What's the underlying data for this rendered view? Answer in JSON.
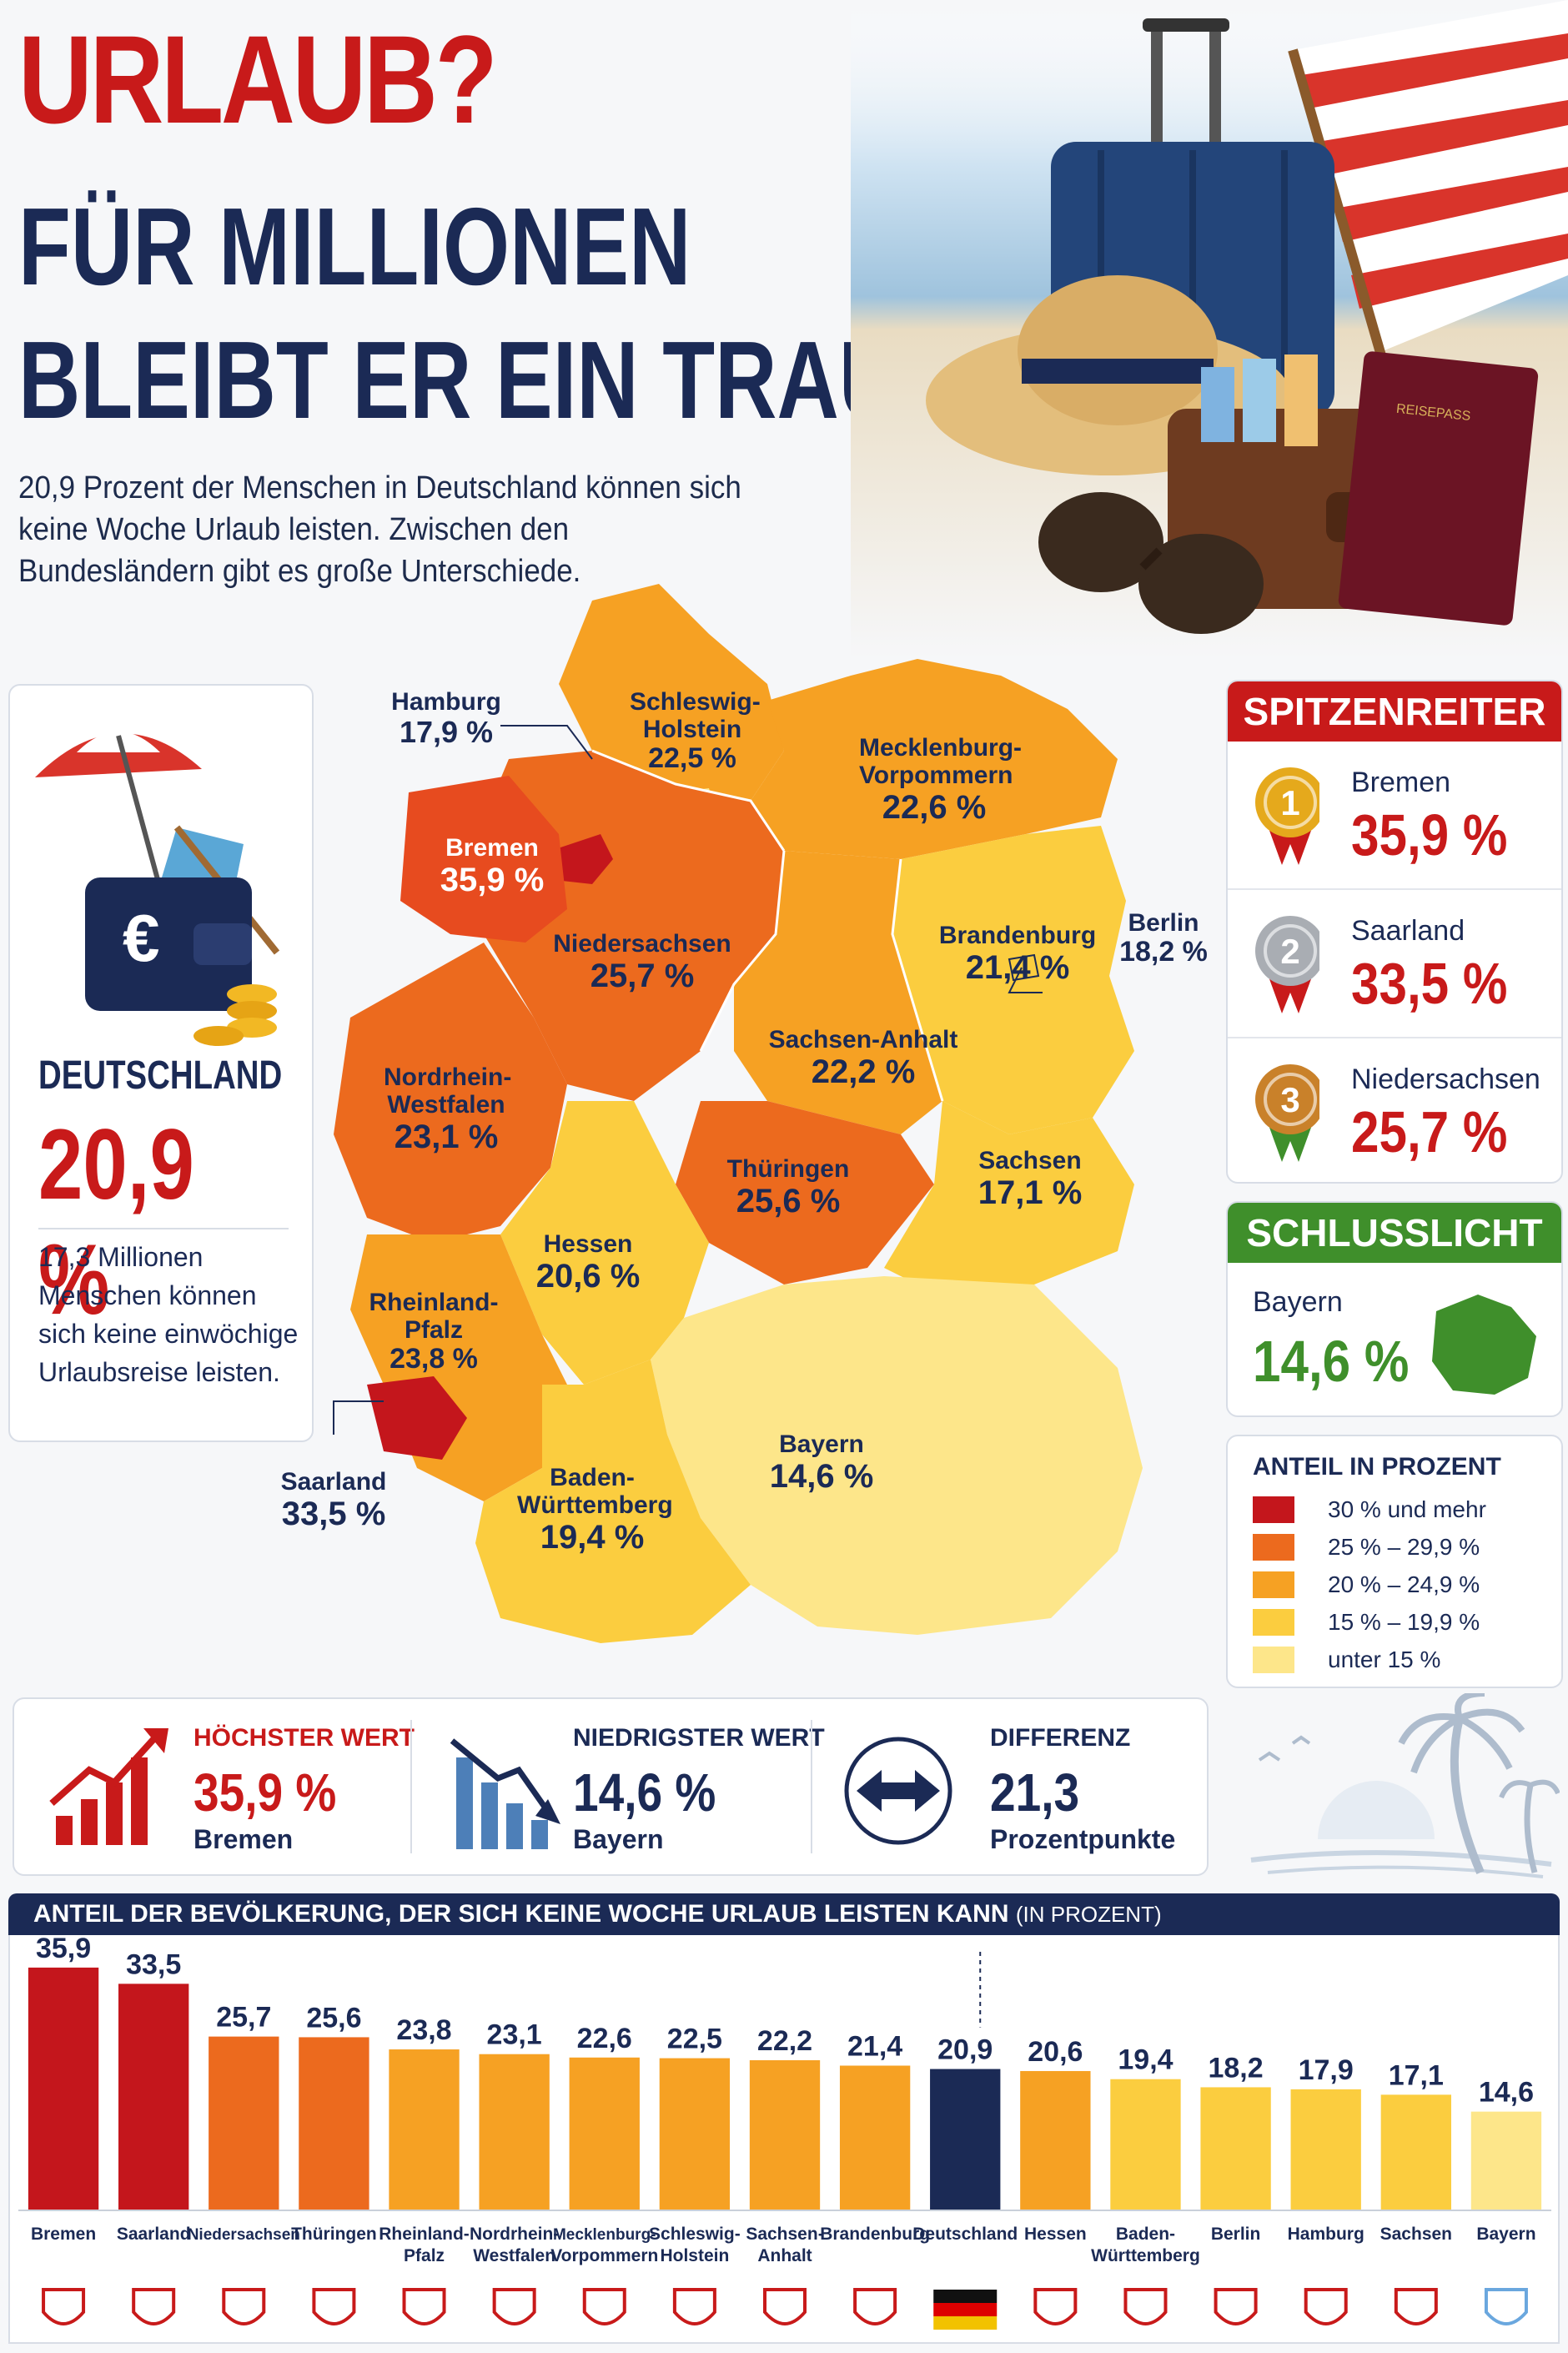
{
  "header": {
    "title_line1": "URLAUB?",
    "title_line2": "FÜR MILLIONEN",
    "title_line3": "BLEIBT ER EIN TRAUM",
    "intro": "20,9 Prozent der Menschen in Deutschland können sich keine Woche Urlaub leisten. Zwischen den Bundesländern gibt es große Unterschiede."
  },
  "deutschland_card": {
    "label": "DEUTSCHLAND",
    "value": "20,9 %",
    "text": "17,3 Millionen Menschen können sich keine einwöchige Urlaubsreise leisten."
  },
  "map_labels": {
    "hamburg": {
      "name": "Hamburg",
      "value": "17,9 %"
    },
    "schleswig": {
      "name": "Schleswig-Holstein",
      "value": "22,5 %"
    },
    "mv": {
      "name": "Mecklenburg-Vorpommern",
      "value": "22,6 %"
    },
    "bremen": {
      "name": "Bremen",
      "value": "35,9 %"
    },
    "niedersachsen": {
      "name": "Niedersachsen",
      "value": "25,7 %"
    },
    "brandenburg": {
      "name": "Brandenburg",
      "value": "21,4 %"
    },
    "berlin": {
      "name": "Berlin",
      "value": "18,2 %"
    },
    "sachsen_anhalt": {
      "name": "Sachsen-Anhalt",
      "value": "22,2 %"
    },
    "nrw": {
      "name": "Nordrhein-Westfalen",
      "value": "23,1 %"
    },
    "thueringen": {
      "name": "Thüringen",
      "value": "25,6 %"
    },
    "sachsen": {
      "name": "Sachsen",
      "value": "17,1 %"
    },
    "hessen": {
      "name": "Hessen",
      "value": "20,6 %"
    },
    "rlp": {
      "name": "Rheinland-Pfalz",
      "value": "23,8 %"
    },
    "saarland": {
      "name": "Saarland",
      "value": "33,5 %"
    },
    "bayern": {
      "name": "Bayern",
      "value": "14,6 %"
    },
    "bw": {
      "name": "Baden-Württemberg",
      "value": "19,4 %"
    }
  },
  "spitzenreiter": {
    "title": "SPITZENREITER",
    "items": [
      {
        "rank": "1",
        "name": "Bremen",
        "value": "35,9 %",
        "medal": "#e5a91c"
      },
      {
        "rank": "2",
        "name": "Saarland",
        "value": "33,5 %",
        "medal": "#a9adb3"
      },
      {
        "rank": "3",
        "name": "Niedersachsen",
        "value": "25,7 %",
        "medal": "#c9812a"
      }
    ]
  },
  "schlusslicht": {
    "title": "SCHLUSSLICHT",
    "name": "Bayern",
    "value": "14,6 %"
  },
  "legend": {
    "title": "ANTEIL IN PROZENT",
    "items": [
      {
        "label": "30 % und mehr",
        "color": "#c4161c"
      },
      {
        "label": "25 % – 29,9 %",
        "color": "#ec6a1e"
      },
      {
        "label": "20 % – 24,9 %",
        "color": "#f6a123"
      },
      {
        "label": "15 % – 19,9 %",
        "color": "#fbcd3f"
      },
      {
        "label": "unter 15 %",
        "color": "#fde68a"
      }
    ]
  },
  "stats": {
    "highest": {
      "title": "HÖCHSTER WERT",
      "value": "35,9 %",
      "sub": "Bremen"
    },
    "lowest": {
      "title": "NIEDRIGSTER WERT",
      "value": "14,6 %",
      "sub": "Bayern"
    },
    "diff": {
      "title": "DIFFERENZ",
      "value": "21,3",
      "sub": "Prozentpunkte"
    }
  },
  "colors": {
    "red": "#c81a1a",
    "navy": "#1b2a55",
    "green": "#3f8f2b"
  },
  "chart_data": {
    "type": "bar",
    "title": "ANTEIL DER BEVÖLKERUNG, DER SICH KEINE WOCHE URLAUB LEISTEN KANN",
    "title_suffix": "(IN PROZENT)",
    "categories": [
      "Bremen",
      "Saarland",
      "Niedersachsen",
      "Thüringen",
      "Rheinland-Pfalz",
      "Nordrhein-Westfalen",
      "Mecklenburg-Vorpommern",
      "Schleswig-Holstein",
      "Sachsen-Anhalt",
      "Brandenburg",
      "Deutschland",
      "Hessen",
      "Baden-Württemberg",
      "Berlin",
      "Hamburg",
      "Sachsen",
      "Bayern"
    ],
    "category_lines": [
      [
        "Bremen"
      ],
      [
        "Saarland"
      ],
      [
        "Niedersachsen"
      ],
      [
        "Thüringen"
      ],
      [
        "Rheinland-",
        "Pfalz"
      ],
      [
        "Nordrhein-",
        "Westfalen"
      ],
      [
        "Mecklenburg-",
        "Vorpommern"
      ],
      [
        "Schleswig-",
        "Holstein"
      ],
      [
        "Sachsen-",
        "Anhalt"
      ],
      [
        "Brandenburg"
      ],
      [
        "Deutschland"
      ],
      [
        "Hessen"
      ],
      [
        "Baden-",
        "Württemberg"
      ],
      [
        "Berlin"
      ],
      [
        "Hamburg"
      ],
      [
        "Sachsen"
      ],
      [
        "Bayern"
      ]
    ],
    "values": [
      35.9,
      33.5,
      25.7,
      25.6,
      23.8,
      23.1,
      22.6,
      22.5,
      22.2,
      21.4,
      20.9,
      20.6,
      19.4,
      18.2,
      17.9,
      17.1,
      14.6
    ],
    "value_labels": [
      "35,9",
      "33,5",
      "25,7",
      "25,6",
      "23,8",
      "23,1",
      "22,6",
      "22,5",
      "22,2",
      "21,4",
      "20,9",
      "20,6",
      "19,4",
      "18,2",
      "17,9",
      "17,1",
      "14,6"
    ],
    "colors": [
      "#c4161c",
      "#c4161c",
      "#ec6a1e",
      "#ec6a1e",
      "#f6a123",
      "#f6a123",
      "#f6a123",
      "#f6a123",
      "#f6a123",
      "#f6a123",
      "#1b2a55",
      "#f6a123",
      "#fbcd3f",
      "#fbcd3f",
      "#fbcd3f",
      "#fbcd3f",
      "#fde68a"
    ],
    "ylim": [
      0,
      40
    ]
  }
}
